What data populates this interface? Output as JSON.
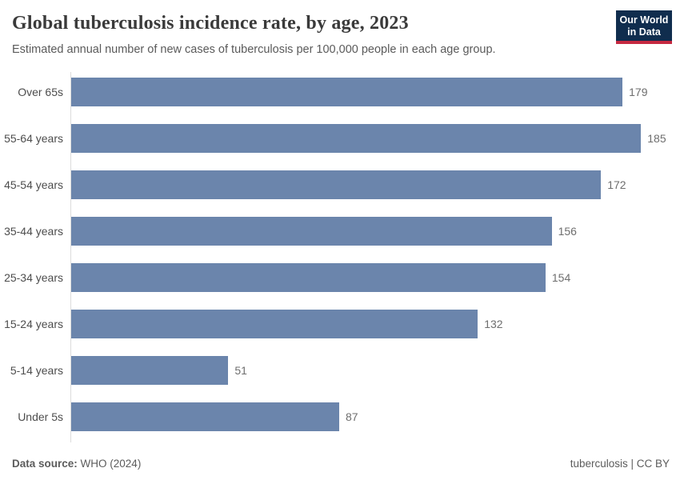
{
  "header": {
    "title": "Global tuberculosis incidence rate, by age, 2023",
    "subtitle": "Estimated annual number of new cases of tuberculosis per 100,000 people in each age group.",
    "logo": {
      "line1": "Our World",
      "line2": "in Data"
    }
  },
  "chart_data": {
    "type": "bar",
    "orientation": "horizontal",
    "title": "Global tuberculosis incidence rate, by age, 2023",
    "xlabel": "",
    "ylabel": "",
    "categories": [
      "Over 65s",
      "55-64 years",
      "45-54 years",
      "35-44 years",
      "25-34 years",
      "15-24 years",
      "5-14 years",
      "Under 5s"
    ],
    "values": [
      179,
      185,
      172,
      156,
      154,
      132,
      51,
      87
    ],
    "value_labels_shown": true,
    "xlim": [
      0,
      194
    ],
    "grid": false,
    "legend": "none",
    "bar_color": "#6b85ac",
    "category_label_color": "#4d4d4d",
    "value_label_color": "#6e6e6e"
  },
  "footer": {
    "source_label": "Data source:",
    "source_value": "WHO (2024)",
    "right_text": "tuberculosis | CC BY"
  },
  "colors": {
    "title": "#3a3a3a",
    "subtitle": "#5a5a5a",
    "axis_line": "#dcdcdc",
    "logo_bg": "#102d4e",
    "logo_accent": "#c52941",
    "background": "#ffffff"
  }
}
